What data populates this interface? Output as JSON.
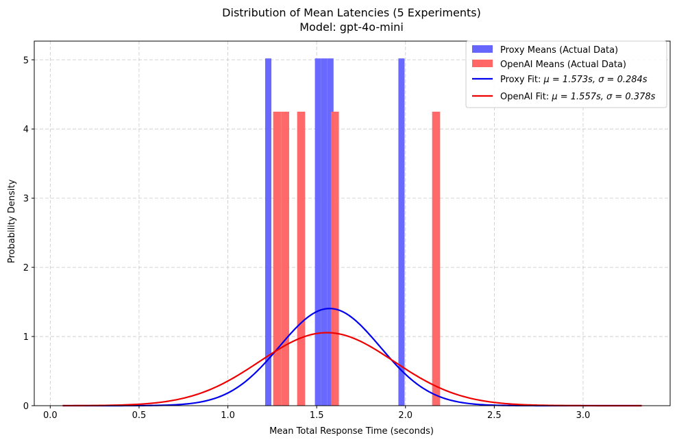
{
  "chart_data": {
    "type": "bar",
    "title": "Distribution of Mean Latencies (5 Experiments)",
    "subtitle": "Model: gpt-4o-mini",
    "xlabel": "Mean Total Response Time (seconds)",
    "ylabel": "Probability Density",
    "xlim": [
      -0.09,
      3.49
    ],
    "ylim": [
      0,
      5.27
    ],
    "xticks": [
      "0.0",
      "0.5",
      "1.0",
      "1.5",
      "2.0",
      "2.5",
      "3.0"
    ],
    "yticks": [
      "0",
      "1",
      "2",
      "3",
      "4",
      "5"
    ],
    "grid": true,
    "legend_placement": "top-right",
    "colors": {
      "proxy": "#6666ff",
      "openai": "#ff6666",
      "proxy_fit": "#0000ee",
      "openai_fit": "#ee0000"
    },
    "histograms": [
      {
        "name": "Proxy Means (Actual Data)",
        "color": "#6666ff",
        "bars": [
          {
            "x0": 1.21,
            "x1": 1.245,
            "density": 5.02
          },
          {
            "x0": 1.49,
            "x1": 1.525,
            "density": 5.02
          },
          {
            "x0": 1.525,
            "x1": 1.56,
            "density": 5.02
          },
          {
            "x0": 1.56,
            "x1": 1.595,
            "density": 5.02
          },
          {
            "x0": 1.96,
            "x1": 1.995,
            "density": 5.02
          }
        ]
      },
      {
        "name": "OpenAI Means (Actual Data)",
        "color": "#ff6666",
        "bars": [
          {
            "x0": 1.255,
            "x1": 1.3,
            "density": 4.25
          },
          {
            "x0": 1.3,
            "x1": 1.345,
            "density": 4.25
          },
          {
            "x0": 1.39,
            "x1": 1.435,
            "density": 4.25
          },
          {
            "x0": 1.58,
            "x1": 1.625,
            "density": 4.25
          },
          {
            "x0": 2.15,
            "x1": 2.195,
            "density": 4.25
          }
        ]
      }
    ],
    "fits": [
      {
        "name": "Proxy Fit",
        "label_prefix": "Proxy Fit: ",
        "label_math": "μ = 1.573s, σ = 0.284s",
        "mu": 1.573,
        "sigma": 0.284,
        "color": "#0000ee"
      },
      {
        "name": "OpenAI Fit",
        "label_prefix": "OpenAI Fit: ",
        "label_math": "μ = 1.557s, σ = 0.378s",
        "mu": 1.557,
        "sigma": 0.378,
        "color": "#ee0000"
      }
    ],
    "fit_x_range": [
      0.07,
      3.33
    ]
  }
}
